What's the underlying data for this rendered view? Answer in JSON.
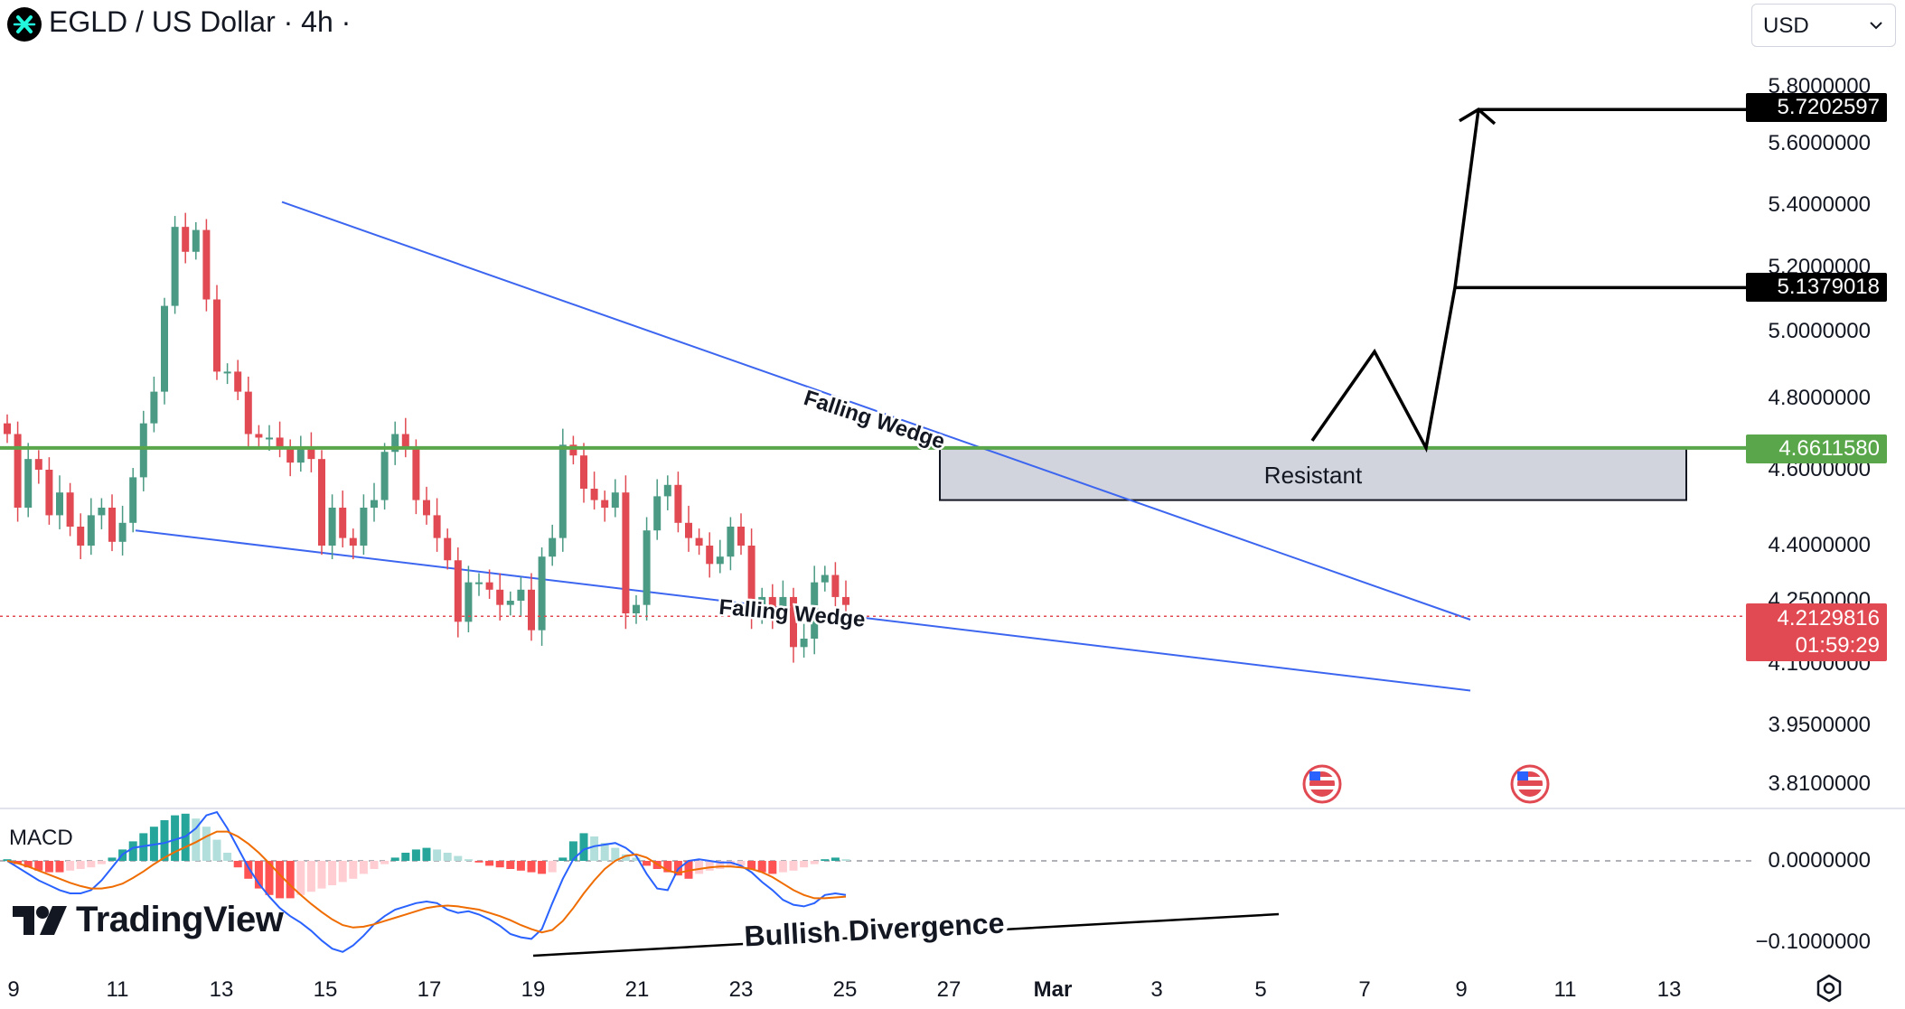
{
  "header": {
    "title": "EGLD / US Dollar · 4h ·",
    "currency": "USD"
  },
  "colors": {
    "up": "#4a9a84",
    "down": "#e14a52",
    "wedge": "#3d66f0",
    "resistance": "#5aa64b",
    "macd_line": "#2962ff",
    "signal_line": "#ef6c00"
  },
  "chart_data": [
    {
      "type": "candlestick",
      "title": "EGLD / US Dollar · 4h",
      "x_ticks": [
        "9",
        "11",
        "13",
        "15",
        "17",
        "19",
        "21",
        "23",
        "25",
        "27",
        "Mar",
        "3",
        "5",
        "7",
        "9",
        "11",
        "13"
      ],
      "y_ticks": [
        "5.8000000",
        "5.6000000",
        "5.4000000",
        "5.2000000",
        "5.0000000",
        "4.8000000",
        "4.6000000",
        "4.4000000",
        "4.2500000",
        "4.1000000",
        "3.9500000",
        "3.8100000"
      ],
      "ylim": [
        3.81,
        5.8
      ],
      "last_price": "4.2129816",
      "countdown": "01:59:29",
      "price_labels": [
        "5.7202597",
        "5.1379018",
        "4.6611580"
      ],
      "resistance_level": 4.661158,
      "resistance_zone": [
        4.52,
        4.66
      ],
      "annotations": [
        "Falling Wedge",
        "Falling Wedge",
        "Resistant"
      ],
      "series": [
        {
          "close": [
            4.7,
            4.5,
            4.63,
            4.6,
            4.48,
            4.54,
            4.45,
            4.4,
            4.48,
            4.5,
            4.41,
            4.46,
            4.58,
            4.73,
            4.82,
            5.08,
            5.33,
            5.25,
            5.32,
            5.1,
            4.88,
            4.88,
            4.82,
            4.7,
            4.69,
            4.69,
            4.66,
            4.62,
            4.66,
            4.63,
            4.4,
            4.5,
            4.42,
            4.4,
            4.5,
            4.52,
            4.65,
            4.7,
            4.66,
            4.52,
            4.48,
            4.42,
            4.36,
            4.2,
            4.3,
            4.3,
            4.28,
            4.24,
            4.25,
            4.28,
            4.18,
            4.37,
            4.42,
            4.67,
            4.64,
            4.55,
            4.52,
            4.5,
            4.54,
            4.22,
            4.24,
            4.44,
            4.53,
            4.56,
            4.46,
            4.42,
            4.4,
            4.35,
            4.37,
            4.45,
            4.4,
            4.22,
            4.26,
            4.22,
            4.26,
            4.14,
            4.16,
            4.3,
            4.32,
            4.26,
            4.24
          ]
        },
        {
          "type": "macd",
          "name": "MACD",
          "y_ticks": [
            "0.0000000",
            "−0.1000000"
          ],
          "ylim": [
            -0.12,
            0.06
          ],
          "annotation": "Bullish Divergence",
          "histogram": [
            0.002,
            -0.004,
            -0.008,
            -0.012,
            -0.014,
            -0.014,
            -0.012,
            -0.01,
            -0.008,
            -0.004,
            0.004,
            0.014,
            0.024,
            0.034,
            0.042,
            0.05,
            0.056,
            0.058,
            0.052,
            0.042,
            0.026,
            0.01,
            -0.008,
            -0.022,
            -0.034,
            -0.042,
            -0.046,
            -0.046,
            -0.042,
            -0.038,
            -0.034,
            -0.03,
            -0.026,
            -0.022,
            -0.016,
            -0.01,
            -0.004,
            0.004,
            0.01,
            0.014,
            0.016,
            0.014,
            0.01,
            0.006,
            0.002,
            -0.002,
            -0.006,
            -0.008,
            -0.01,
            -0.012,
            -0.014,
            -0.016,
            -0.014,
            0.004,
            0.024,
            0.034,
            0.03,
            0.022,
            0.016,
            0.008,
            0.004,
            -0.006,
            -0.01,
            -0.014,
            -0.018,
            -0.022,
            -0.016,
            -0.012,
            -0.01,
            -0.008,
            -0.006,
            -0.01,
            -0.014,
            -0.016,
            -0.014,
            -0.012,
            -0.008,
            -0.004,
            0.002,
            0.004,
            0.002
          ],
          "macd": [
            0.0,
            -0.008,
            -0.016,
            -0.024,
            -0.03,
            -0.036,
            -0.04,
            -0.04,
            -0.036,
            -0.024,
            -0.008,
            0.008,
            0.016,
            0.018,
            0.02,
            0.022,
            0.026,
            0.03,
            0.04,
            0.056,
            0.06,
            0.04,
            0.016,
            -0.008,
            -0.028,
            -0.044,
            -0.058,
            -0.068,
            -0.076,
            -0.086,
            -0.098,
            -0.108,
            -0.112,
            -0.104,
            -0.092,
            -0.078,
            -0.068,
            -0.06,
            -0.056,
            -0.052,
            -0.05,
            -0.052,
            -0.06,
            -0.064,
            -0.062,
            -0.066,
            -0.072,
            -0.08,
            -0.09,
            -0.094,
            -0.096,
            -0.084,
            -0.052,
            -0.022,
            0.002,
            0.014,
            0.018,
            0.02,
            0.022,
            0.016,
            0.006,
            -0.016,
            -0.034,
            -0.036,
            -0.01,
            0.0,
            0.002,
            0.0,
            -0.002,
            -0.002,
            -0.006,
            -0.014,
            -0.026,
            -0.036,
            -0.048,
            -0.054,
            -0.056,
            -0.052,
            -0.042,
            -0.04,
            -0.042
          ],
          "signal": [
            0.0,
            -0.003,
            -0.007,
            -0.012,
            -0.017,
            -0.022,
            -0.027,
            -0.031,
            -0.034,
            -0.034,
            -0.032,
            -0.028,
            -0.021,
            -0.013,
            -0.004,
            0.004,
            0.011,
            0.017,
            0.023,
            0.03,
            0.036,
            0.036,
            0.03,
            0.021,
            0.01,
            -0.003,
            -0.017,
            -0.03,
            -0.042,
            -0.053,
            -0.063,
            -0.072,
            -0.079,
            -0.082,
            -0.081,
            -0.078,
            -0.074,
            -0.07,
            -0.066,
            -0.062,
            -0.058,
            -0.056,
            -0.055,
            -0.056,
            -0.058,
            -0.06,
            -0.064,
            -0.068,
            -0.073,
            -0.079,
            -0.084,
            -0.088,
            -0.085,
            -0.074,
            -0.058,
            -0.04,
            -0.024,
            -0.01,
            0.0,
            0.006,
            0.008,
            0.004,
            -0.004,
            -0.012,
            -0.015,
            -0.012,
            -0.01,
            -0.008,
            -0.007,
            -0.007,
            -0.008,
            -0.01,
            -0.014,
            -0.02,
            -0.028,
            -0.036,
            -0.042,
            -0.046,
            -0.046,
            -0.045,
            -0.044
          ]
        }
      ]
    }
  ],
  "branding": {
    "name": "TradingView"
  }
}
